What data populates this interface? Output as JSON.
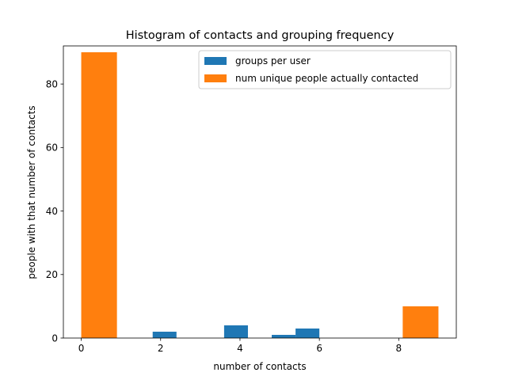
{
  "chart_data": {
    "type": "bar",
    "title": "Histogram of contacts and grouping frequency",
    "xlabel": "number of contacts",
    "ylabel": "people with that number of contacts",
    "xlim": [
      -0.45,
      9.45
    ],
    "ylim": [
      0,
      92
    ],
    "xticks": [
      0,
      2,
      4,
      6,
      8
    ],
    "yticks": [
      0,
      20,
      40,
      60,
      80
    ],
    "grid": false,
    "legend_position": "top-right",
    "series": [
      {
        "name": "groups per user",
        "color": "#1f77b4",
        "bars": [
          {
            "x0": 1.8,
            "x1": 2.4,
            "value": 2
          },
          {
            "x0": 3.6,
            "x1": 4.2,
            "value": 4
          },
          {
            "x0": 4.8,
            "x1": 5.4,
            "value": 1
          },
          {
            "x0": 5.4,
            "x1": 6.0,
            "value": 3
          }
        ]
      },
      {
        "name": "num unique people actually contacted",
        "color": "#ff7f0e",
        "bars": [
          {
            "x0": 0.0,
            "x1": 0.9,
            "value": 90
          },
          {
            "x0": 8.1,
            "x1": 9.0,
            "value": 10
          }
        ]
      }
    ]
  }
}
